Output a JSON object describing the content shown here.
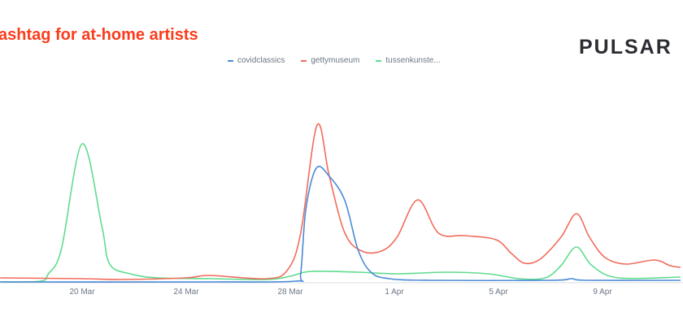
{
  "title": "ashtag for at-home artists",
  "logo": "PULSAR",
  "chart_data": {
    "type": "line",
    "title": "ashtag for at-home artists",
    "xlabel": "",
    "ylabel": "",
    "x_unit": "days since 20 Mar",
    "x_ticks": [
      {
        "d": 0,
        "label": "20 Mar"
      },
      {
        "d": 4,
        "label": "24 Mar"
      },
      {
        "d": 8,
        "label": "28 Mar"
      },
      {
        "d": 12,
        "label": "1 Apr"
      },
      {
        "d": 16,
        "label": "5 Apr"
      },
      {
        "d": 20,
        "label": "9 Apr"
      }
    ],
    "xlim": [
      -3.15,
      23
    ],
    "ylim": [
      0,
      200
    ],
    "grid": false,
    "legend": "top-center",
    "series": [
      {
        "name": "covidclassics",
        "color": "#4a8ad6",
        "points": [
          [
            -3.15,
            0
          ],
          [
            5,
            0
          ],
          [
            8.2,
            1
          ],
          [
            8.4,
            10
          ],
          [
            8.6,
            90
          ],
          [
            9,
            140
          ],
          [
            9.5,
            130
          ],
          [
            10.1,
            100
          ],
          [
            10.6,
            40
          ],
          [
            11.1,
            12
          ],
          [
            11.8,
            4
          ],
          [
            13.4,
            2
          ],
          [
            18,
            2
          ],
          [
            18.8,
            4
          ],
          [
            19.4,
            2
          ],
          [
            23,
            2
          ]
        ]
      },
      {
        "name": "gettymuseum",
        "color": "#f26b5b",
        "points": [
          [
            -3.15,
            5
          ],
          [
            0,
            4
          ],
          [
            1.5,
            3
          ],
          [
            4,
            5
          ],
          [
            4.9,
            8
          ],
          [
            7.1,
            4
          ],
          [
            7.9,
            15
          ],
          [
            8.4,
            60
          ],
          [
            9.03,
            193
          ],
          [
            9.5,
            130
          ],
          [
            10.1,
            60
          ],
          [
            10.75,
            38
          ],
          [
            11.5,
            38
          ],
          [
            12.1,
            55
          ],
          [
            12.9,
            101
          ],
          [
            13.7,
            60
          ],
          [
            14.7,
            57
          ],
          [
            15.9,
            52
          ],
          [
            16.5,
            35
          ],
          [
            17,
            23
          ],
          [
            17.6,
            28
          ],
          [
            18.4,
            55
          ],
          [
            19,
            84
          ],
          [
            19.5,
            55
          ],
          [
            20.1,
            30
          ],
          [
            20.9,
            22
          ],
          [
            22,
            27
          ],
          [
            22.6,
            20
          ],
          [
            23,
            18
          ]
        ]
      },
      {
        "name": "tussenkunste...",
        "color": "#5fdc8f",
        "points": [
          [
            -3.15,
            0
          ],
          [
            -1.6,
            1
          ],
          [
            -1.3,
            10
          ],
          [
            -0.8,
            40
          ],
          [
            0,
            170
          ],
          [
            0.75,
            70
          ],
          [
            1.06,
            22
          ],
          [
            1.85,
            10
          ],
          [
            2.9,
            5
          ],
          [
            4.9,
            4
          ],
          [
            7.1,
            3
          ],
          [
            8,
            7
          ],
          [
            8.8,
            13
          ],
          [
            10.6,
            12
          ],
          [
            12.1,
            10
          ],
          [
            14,
            12
          ],
          [
            15.6,
            10
          ],
          [
            16.8,
            4
          ],
          [
            17.8,
            5
          ],
          [
            18.4,
            20
          ],
          [
            19,
            43
          ],
          [
            19.6,
            20
          ],
          [
            20.6,
            5
          ],
          [
            23,
            6
          ]
        ]
      }
    ]
  }
}
